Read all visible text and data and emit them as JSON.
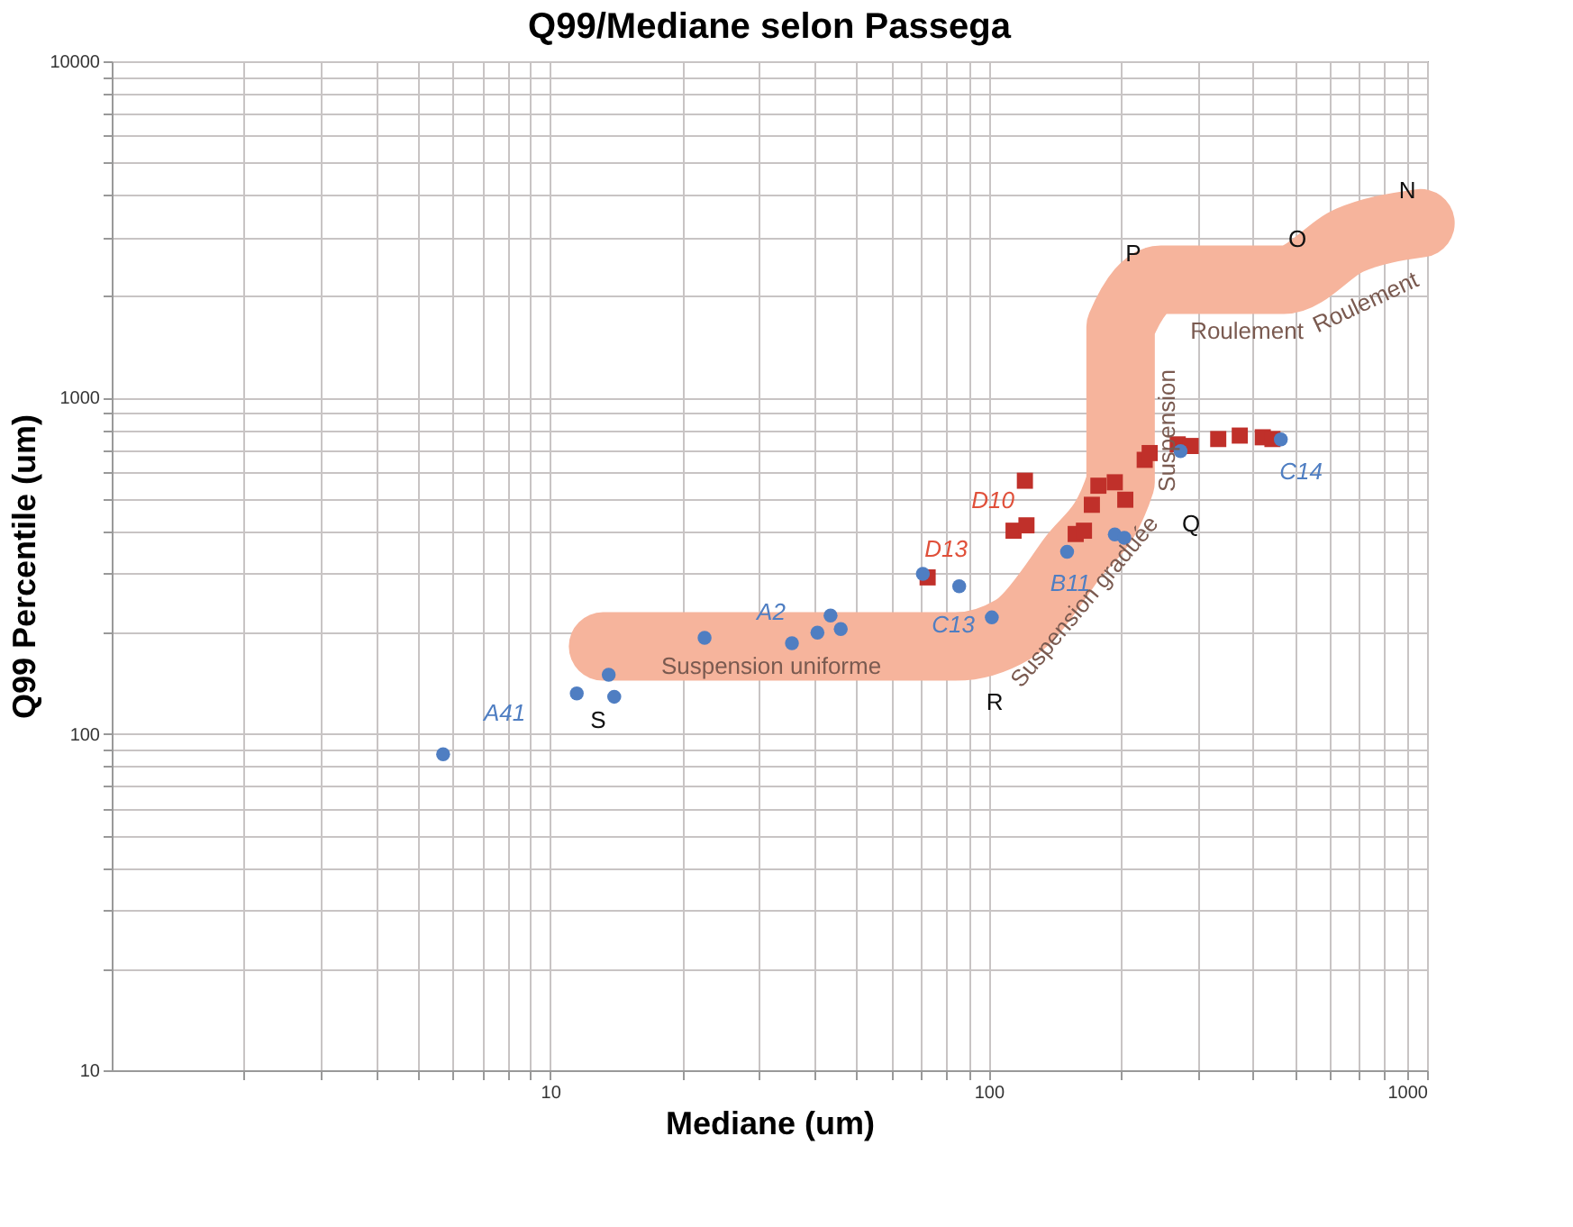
{
  "chart_data": {
    "type": "scatter",
    "title": "Q99/Mediane selon Passega",
    "xlabel": "Mediane (um)",
    "ylabel": "Q99 Percentile (um)",
    "log": "xy",
    "grid": true,
    "xlim": [
      1,
      1000
    ],
    "ylim": [
      10,
      10000
    ],
    "xticks": [
      {
        "value": 2,
        "label": null
      },
      {
        "value": 3,
        "label": null
      },
      {
        "value": 4,
        "label": null
      },
      {
        "value": 5,
        "label": null
      },
      {
        "value": 6,
        "label": null
      },
      {
        "value": 7,
        "label": null
      },
      {
        "value": 8,
        "label": null
      },
      {
        "value": 9,
        "label": null
      },
      10,
      {
        "value": 20,
        "label": null
      },
      {
        "value": 30,
        "label": null
      },
      {
        "value": 40,
        "label": null
      },
      {
        "value": 50,
        "label": null
      },
      {
        "value": 60,
        "label": null
      },
      {
        "value": 70,
        "label": null
      },
      {
        "value": 80,
        "label": null
      },
      {
        "value": 90,
        "label": null
      },
      100,
      {
        "value": 200,
        "label": null
      },
      {
        "value": 300,
        "label": null
      },
      {
        "value": 400,
        "label": null
      },
      {
        "value": 500,
        "label": null
      },
      {
        "value": 600,
        "label": null
      },
      {
        "value": 700,
        "label": null
      },
      {
        "value": 800,
        "label": null
      },
      {
        "value": 900,
        "label": null
      },
      1000
    ],
    "yticks": [
      10,
      {
        "value": 20,
        "label": null
      },
      {
        "value": 30,
        "label": null
      },
      {
        "value": 40,
        "label": null
      },
      {
        "value": 50,
        "label": null
      },
      {
        "value": 60,
        "label": null
      },
      {
        "value": 70,
        "label": null
      },
      {
        "value": 80,
        "label": null
      },
      {
        "value": 90,
        "label": null
      },
      100,
      {
        "value": 200,
        "label": null
      },
      {
        "value": 300,
        "label": null
      },
      {
        "value": 400,
        "label": null
      },
      {
        "value": 500,
        "label": null
      },
      {
        "value": 600,
        "label": null
      },
      {
        "value": 700,
        "label": null
      },
      {
        "value": 800,
        "label": null
      },
      {
        "value": 900,
        "label": null
      },
      1000,
      {
        "value": 2000,
        "label": null
      },
      {
        "value": 3000,
        "label": null
      },
      {
        "value": 4000,
        "label": null
      },
      {
        "value": 5000,
        "label": null
      },
      {
        "value": 6000,
        "label": null
      },
      {
        "value": 7000,
        "label": null
      },
      {
        "value": 8000,
        "label": null
      },
      {
        "value": 9000,
        "label": null
      },
      10000
    ],
    "series": [
      {
        "type": "line",
        "color": "#f6b49c",
        "x": [
          13.2,
          84,
          114,
          154,
          200,
          200,
          247,
          472,
          667,
          966
        ],
        "values": [
          182,
          182,
          205,
          329,
          560,
          1625,
          2240,
          2240,
          2940,
          3300
        ]
      },
      {
        "color": "#c0302a",
        "marker": "square",
        "x": [
          72.6,
          121,
          114,
          122,
          158,
          165,
          178,
          172,
          194,
          205,
          227,
          270,
          233,
          289,
          334,
          374,
          422,
          444
        ],
        "values": [
          292,
          566,
          402,
          417,
          393,
          402,
          547,
          480,
          560,
          497,
          653,
          726,
          684,
          718,
          753,
          771,
          762,
          753
        ]
      },
      {
        "color": "#4f7ec2",
        "marker": "circle",
        "x": [
          5.7,
          11.5,
          13.6,
          14.0,
          22.5,
          35.6,
          40.7,
          43.6,
          46,
          70.8,
          85.7,
          101.7,
          151,
          194,
          204,
          274,
          464
        ],
        "values": [
          87,
          132,
          150,
          129,
          193,
          186,
          200,
          225,
          205,
          299,
          275,
          222,
          348,
          392,
          383,
          693,
          751
        ]
      }
    ],
    "annotations": [
      "A41",
      "A2",
      "S",
      "Suspension uniforme",
      "C13",
      "D13",
      "D10",
      "B11",
      "C14",
      "R",
      "Q",
      "P",
      "O",
      "N",
      "Roulement",
      "Suspension graduée",
      "Suspension",
      "Roulement"
    ]
  }
}
